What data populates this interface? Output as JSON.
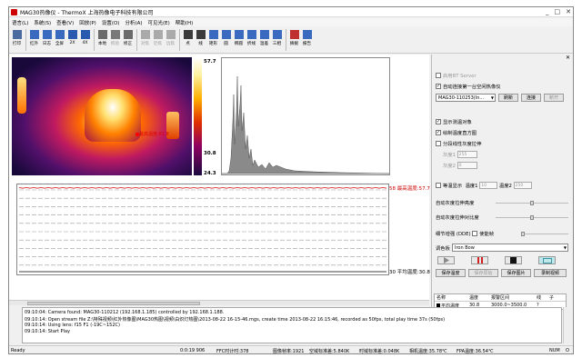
{
  "window": {
    "title": "MAG30热像仪 - ThermoX 上海热像电子科技有限公司",
    "min": "_",
    "max": "□",
    "close": "✕"
  },
  "menu": [
    "语言(L)",
    "系统(S)",
    "查看(V)",
    "回放(P)",
    "设置(O)",
    "分析(A)",
    "可见光(E)",
    "帮助(H)"
  ],
  "toolbar": [
    {
      "label": "打印",
      "icon": "printer-icon",
      "color": "#4a6aa0"
    },
    {
      "label": "红外",
      "icon": "infrared-icon",
      "color": "#3a6ac0"
    },
    {
      "label": "日志",
      "icon": "log-icon",
      "color": "#3a6ac0"
    },
    {
      "label": "全屏",
      "icon": "fullscreen-icon",
      "color": "#3a6ac0"
    },
    {
      "label": "2X",
      "icon": "zoom-2x-icon",
      "color": "#2a5ab0"
    },
    {
      "label": "4X",
      "icon": "zoom-4x-icon",
      "color": "#2a5ab0"
    },
    {
      "label": "本地",
      "icon": "local-icon",
      "color": "#6a6a6a"
    },
    {
      "label": "校验",
      "icon": "verify-icon",
      "color": "#7a7a7a",
      "disabled": true
    },
    {
      "label": "修正",
      "icon": "correct-icon",
      "color": "#6a6a6a"
    },
    {
      "label": "对焦",
      "icon": "focus-icon",
      "color": "#aaaaaa",
      "disabled": true
    },
    {
      "label": "近焦",
      "icon": "near-focus-icon",
      "color": "#aaaaaa",
      "disabled": true
    },
    {
      "label": "远焦",
      "icon": "far-focus-icon",
      "color": "#aaaaaa",
      "disabled": true
    },
    {
      "label": "点",
      "icon": "point-icon",
      "color": "#3a3a3a"
    },
    {
      "label": "线",
      "icon": "line-icon",
      "color": "#3a3a3a"
    },
    {
      "label": "矩形",
      "icon": "rectangle-icon",
      "color": "#3a6ac0"
    },
    {
      "label": "圆",
      "icon": "circle-icon",
      "color": "#3a6ac0"
    },
    {
      "label": "椭圆",
      "icon": "ellipse-icon",
      "color": "#3a6ac0"
    },
    {
      "label": "折线",
      "icon": "polyline-icon",
      "color": "#3a6ac0"
    },
    {
      "label": "温差",
      "icon": "temp-diff-icon",
      "color": "#3a6ac0"
    },
    {
      "label": "三相",
      "icon": "three-phase-icon",
      "color": "#3a6ac0"
    },
    {
      "label": "摘掘",
      "icon": "extract-icon",
      "color": "#c03030"
    },
    {
      "label": "报告",
      "icon": "report-icon",
      "color": "#3a6ac0"
    }
  ],
  "image": {
    "max_label": "最高温度:61.8",
    "colorbar_max": "57.7",
    "colorbar_mid": "30.8",
    "colorbar_min": "24.3"
  },
  "linechart": {
    "top_value": "58",
    "bottom_value": "30",
    "top_label": "最高温度:57.7",
    "bottom_label": "平均温度:30.8"
  },
  "right": {
    "close": "✕",
    "lowpower_server": "启用BT Server",
    "auto_connect": "自动连接第一台空闲热像仪",
    "device": "MAG30-110253(In...",
    "refresh": "刷新",
    "connect": "连接",
    "disconnect": "断开",
    "show_objects": "显示测温对象",
    "show_histogram": "绘制温度直方图",
    "segment_stretch": "分段线性灰度拉伸",
    "gray1_label": "灰度1",
    "gray1": "255",
    "gray2_label": "灰度2",
    "gray2": "0",
    "isotherm": "等温显示",
    "temp1_label": "温度1",
    "temp1": "10",
    "temp2_label": "温度2",
    "temp2": "250",
    "auto_brightness": "自动灰度拉伸亮度",
    "auto_contrast": "自动灰度拉伸对比度",
    "detail_enhance": "细节增强 (DDE)",
    "anti_shake": "使能帧",
    "palette_label": "调色板",
    "palette": "Iron Bow",
    "save_temp": "保存温度",
    "save_raw": "保存原始",
    "save_image": "保存图片",
    "record_video": "录制视频",
    "grid_headers": [
      "名称",
      "温度",
      "报警区间",
      "线",
      "子"
    ],
    "grid_row": [
      "平均温度",
      "30.8",
      "3000.0~3500.0",
      "?",
      ""
    ]
  },
  "log": [
    "09:10:04: Camera found: MAG30-110212 (192.168.1.185) controlled by 192.168.1.188.",
    "09:10:14: Open stream file Z:\\特殊视频\\红外热像图\\MAG30热图\\视频\\白炽灯热图\\2013-08-22 16-15-46.mgs, create time 2013-08-22 16:15:46, recorded as 50fps, total play time 37s (50fps)",
    "09:10:14: Using lens: f15 F1 (-19C~152C)",
    "09:10:14: Start Play"
  ],
  "status": [
    "Ready",
    "0:0:19 906",
    "FFC时计时:378",
    "图像帧率:1921",
    "空域标准差:5.840K",
    "时域标准差:0.048K",
    "相机温度:35.78℃",
    "FPA温度:36.54℃",
    "NUM",
    "O"
  ]
}
